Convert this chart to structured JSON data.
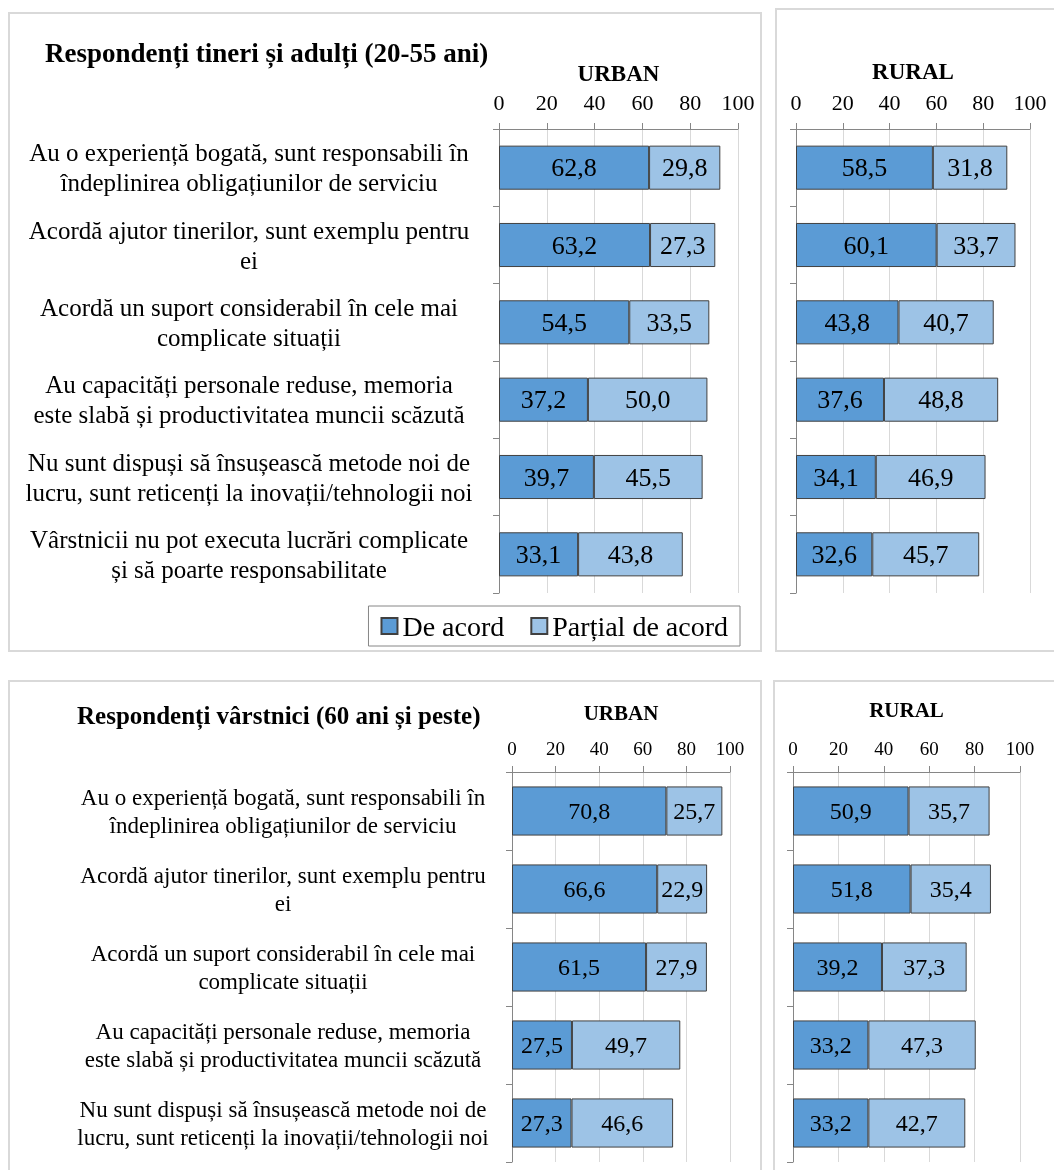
{
  "chart_data": [
    {
      "type": "bar",
      "orientation": "horizontal",
      "stacked": true,
      "title": "Respondenți tineri și adulți (20-55 ani)",
      "xlabel": "URBAN",
      "categories": [
        "Au o experiență bogată, sunt responsabili în îndeplinirea obligațiunilor de serviciu",
        "Acordă ajutor tinerilor, sunt exemplu pentru ei",
        "Acordă un suport considerabil în cele mai complicate situații",
        "Au capacități personale reduse, memoria este slabă și productivitatea muncii scăzută",
        "Nu sunt dispuși să însușească metode noi de lucru, sunt reticenți la inovații/tehnologii noi",
        "Vârstnicii nu pot executa lucrări complicate și să poarte responsabilitate"
      ],
      "series": [
        {
          "name": "De acord",
          "color": "#5b9bd5",
          "values": [
            62.8,
            63.2,
            54.5,
            37.2,
            39.7,
            33.1
          ],
          "value_labels": [
            "62,8",
            "63,2",
            "54,5",
            "37,2",
            "39,7",
            "33,1"
          ]
        },
        {
          "name": "Parțial de acord",
          "color": "#9dc3e6",
          "values": [
            29.8,
            27.3,
            33.5,
            50.0,
            45.5,
            43.8
          ],
          "value_labels": [
            "29,8",
            "27,3",
            "33,5",
            "50,0",
            "45,5",
            "43,8"
          ]
        }
      ],
      "xlim": [
        0,
        100
      ],
      "xticks": [
        0,
        20,
        40,
        60,
        80,
        100
      ],
      "grid": "x",
      "legend": "bottom"
    },
    {
      "type": "bar",
      "orientation": "horizontal",
      "stacked": true,
      "xlabel": "RURAL",
      "categories": [
        null,
        null,
        null,
        null,
        null,
        null
      ],
      "series": [
        {
          "color": "#5b9bd5",
          "values": [
            58.5,
            60.1,
            43.8,
            37.6,
            34.1,
            32.6
          ],
          "value_labels": [
            "58,5",
            "60,1",
            "43,8",
            "37,6",
            "34,1",
            "32,6"
          ]
        },
        {
          "color": "#9dc3e6",
          "values": [
            31.8,
            33.7,
            40.7,
            48.8,
            46.9,
            45.7
          ],
          "value_labels": [
            "31,8",
            "33,7",
            "40,7",
            "48,8",
            "46,9",
            "45,7"
          ]
        }
      ],
      "xlim": [
        0,
        100
      ],
      "xticks": [
        0,
        20,
        40,
        60,
        80,
        100
      ],
      "grid": "x"
    },
    {
      "type": "bar",
      "orientation": "horizontal",
      "stacked": true,
      "title": "Respondenți vârstnici (60 ani și peste)",
      "xlabel": "URBAN",
      "categories": [
        "Au o experiență bogată, sunt responsabili în îndeplinirea obligațiunilor de serviciu",
        "Acordă ajutor tinerilor, sunt exemplu pentru ei",
        "Acordă un suport considerabil în cele mai complicate situații",
        "Au capacități personale reduse, memoria este slabă și productivitatea muncii scăzută",
        "Nu sunt dispuși să însușească metode noi de lucru, sunt reticenți la inovații/tehnologii noi"
      ],
      "series": [
        {
          "color": "#5b9bd5",
          "values": [
            70.8,
            66.6,
            61.5,
            27.5,
            27.3
          ],
          "value_labels": [
            "70,8",
            "66,6",
            "61,5",
            "27,5",
            "27,3"
          ]
        },
        {
          "color": "#9dc3e6",
          "values": [
            25.7,
            22.9,
            27.9,
            49.7,
            46.6
          ],
          "value_labels": [
            "25,7",
            "22,9",
            "27,9",
            "49,7",
            "46,6"
          ]
        }
      ],
      "xlim": [
        0,
        100
      ],
      "xticks": [
        0,
        20,
        40,
        60,
        80,
        100
      ],
      "grid": "x"
    },
    {
      "type": "bar",
      "orientation": "horizontal",
      "stacked": true,
      "xlabel": "RURAL",
      "categories": [
        null,
        null,
        null,
        null,
        null
      ],
      "series": [
        {
          "color": "#5b9bd5",
          "values": [
            50.9,
            51.8,
            39.2,
            33.2,
            33.2
          ],
          "value_labels": [
            "50,9",
            "51,8",
            "39,2",
            "33,2",
            "33,2"
          ]
        },
        {
          "color": "#9dc3e6",
          "values": [
            35.7,
            35.4,
            37.3,
            47.3,
            42.7
          ],
          "value_labels": [
            "35,7",
            "35,4",
            "37,3",
            "47,3",
            "42,7"
          ]
        }
      ],
      "xlim": [
        0,
        100
      ],
      "xticks": [
        0,
        20,
        40,
        60,
        80,
        100
      ],
      "grid": "x"
    }
  ]
}
